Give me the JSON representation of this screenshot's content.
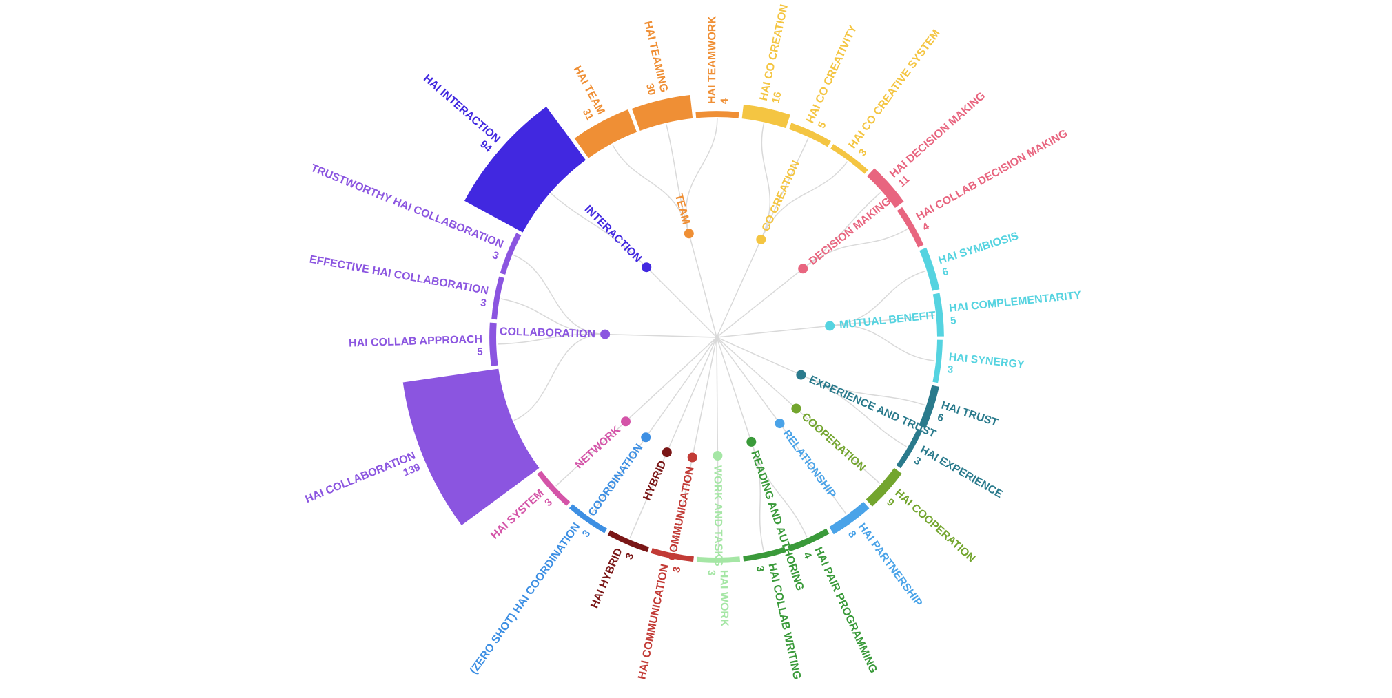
{
  "chart_data": {
    "type": "radial_hierarchy",
    "groups": [
      {
        "name": "INTERACTION",
        "color": "#4128e0",
        "items": [
          {
            "name": "HAI INTERACTION",
            "value": 94
          }
        ]
      },
      {
        "name": "TEAM",
        "color": "#ef8f35",
        "items": [
          {
            "name": "HAI TEAM",
            "value": 31
          },
          {
            "name": "HAI TEAMING",
            "value": 30
          },
          {
            "name": "HAI TEAMWORK",
            "value": 4
          }
        ]
      },
      {
        "name": "CO CREATION",
        "color": "#f4c542",
        "items": [
          {
            "name": "HAI CO CREATION",
            "value": 16
          },
          {
            "name": "HAI CO CREATIVITY",
            "value": 5
          },
          {
            "name": "HAI CO CREATIVE SYSTEM",
            "value": 3
          }
        ]
      },
      {
        "name": "DECISION MAKING",
        "color": "#e8657f",
        "items": [
          {
            "name": "HAI DECISION MAKING",
            "value": 11
          },
          {
            "name": "HAI COLLAB DECISION MAKING",
            "value": 4
          }
        ]
      },
      {
        "name": "MUTUAL BENEFIT",
        "color": "#55d3e0",
        "items": [
          {
            "name": "HAI SYMBIOSIS",
            "value": 6
          },
          {
            "name": "HAI COMPLEMENTARITY",
            "value": 5
          },
          {
            "name": "HAI SYNERGY",
            "value": 3
          }
        ]
      },
      {
        "name": "EXPERIENCE AND TRUST",
        "color": "#2a7a8c",
        "items": [
          {
            "name": "HAI TRUST",
            "value": 6
          },
          {
            "name": "HAI EXPERIENCE",
            "value": 3
          }
        ]
      },
      {
        "name": "COOPERATION",
        "color": "#73a52e",
        "items": [
          {
            "name": "HAI COOPERATION",
            "value": 9
          }
        ]
      },
      {
        "name": "RELATIONSHIP",
        "color": "#4aa3e8",
        "items": [
          {
            "name": "HAI PARTNERSHIP",
            "value": 8
          }
        ]
      },
      {
        "name": "READING AND AUTHORING",
        "color": "#3a9a3a",
        "items": [
          {
            "name": "HAI PAIR PROGRAMMING",
            "value": 4
          },
          {
            "name": "HAI COLLAB WRITING",
            "value": 3
          }
        ]
      },
      {
        "name": "WORK AND TASKS",
        "color": "#a5e6a5",
        "items": [
          {
            "name": "HAI WORK",
            "value": 3
          }
        ]
      },
      {
        "name": "COMMUNICATION",
        "color": "#c23b36",
        "items": [
          {
            "name": "HAI COMMUNICATION",
            "value": 3
          }
        ]
      },
      {
        "name": "HYBRID",
        "color": "#7a1616",
        "items": [
          {
            "name": "HAI HYBRID",
            "value": 3
          }
        ]
      },
      {
        "name": "COORDINATION",
        "color": "#3d8fe3",
        "items": [
          {
            "name": "(ZERO SHOT) HAI COORDINATION",
            "value": 3
          }
        ]
      },
      {
        "name": "NETWORK",
        "color": "#d454a8",
        "items": [
          {
            "name": "HAI SYSTEM",
            "value": 3
          }
        ]
      },
      {
        "name": "COLLABORATION",
        "color": "#8b55e0",
        "items": [
          {
            "name": "HAI COLLABORATION",
            "value": 139
          },
          {
            "name": "HAI COLLAB APPROACH",
            "value": 5
          },
          {
            "name": "EFFECTIVE HAI COLLABORATION",
            "value": 3
          },
          {
            "name": "TRUSTWORTHY HAI COLLABORATION",
            "value": 3
          }
        ]
      }
    ]
  }
}
